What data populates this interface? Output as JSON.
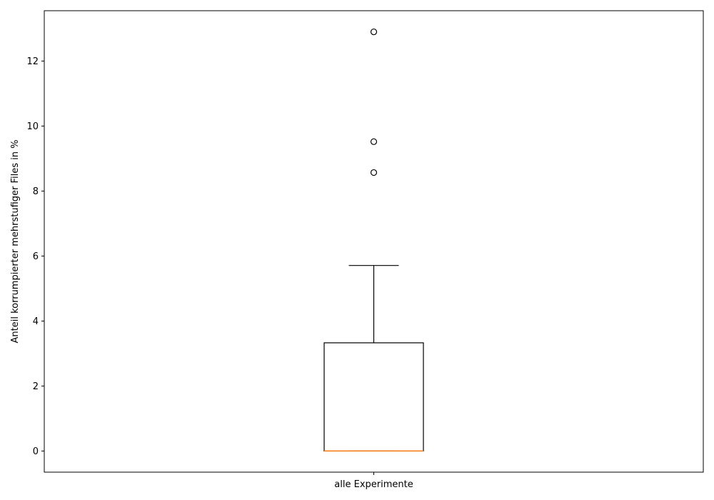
{
  "chart_data": {
    "type": "boxplot",
    "title": "",
    "xlabel": "",
    "ylabel": "Anteil korrumpierter mehrstufiger Files in %",
    "categories": [
      "alle Experimente"
    ],
    "boxes": [
      {
        "category": "alle Experimente",
        "whisker_low": 0,
        "q1": 0,
        "median": 0,
        "q3": 3.33,
        "whisker_high": 5.71,
        "outliers": [
          8.57,
          9.52,
          12.9
        ]
      }
    ],
    "ylim": [
      -0.65,
      13.55
    ],
    "yticks": [
      0,
      2,
      4,
      6,
      8,
      10,
      12
    ],
    "grid": false,
    "colors": {
      "box": "#000000",
      "median": "#ff7f0e",
      "whisker": "#000000",
      "outlier": "#000000"
    }
  }
}
